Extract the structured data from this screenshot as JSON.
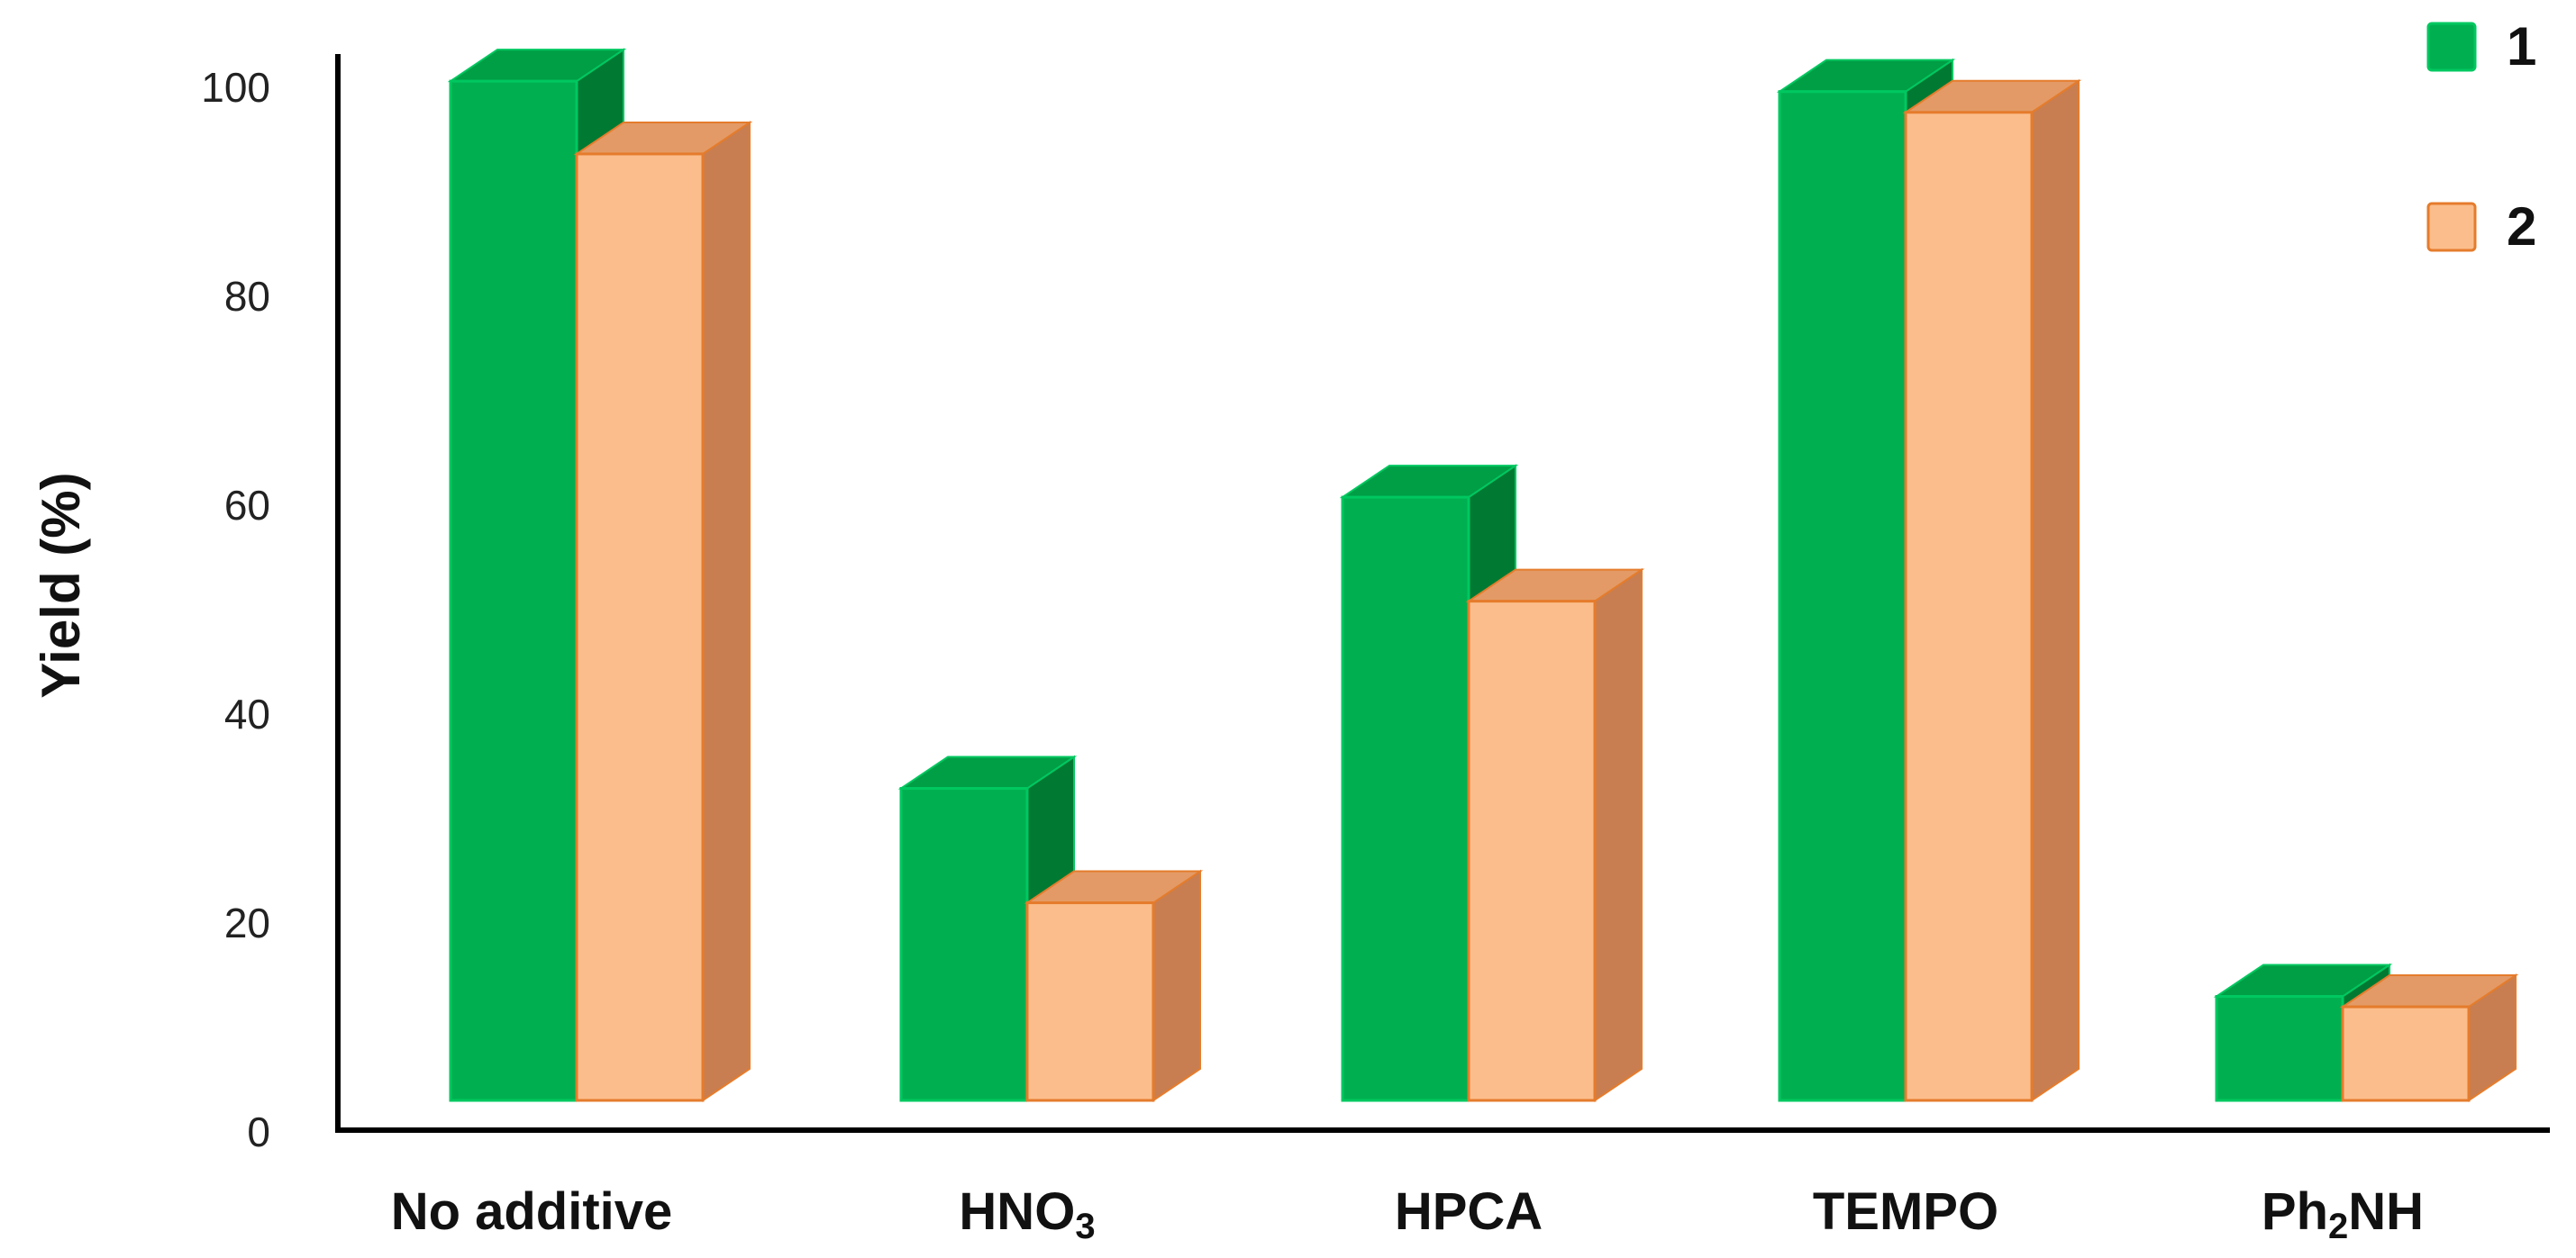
{
  "chart_data": {
    "type": "bar",
    "title": "",
    "xlabel": "",
    "ylabel": "Yield (%)",
    "ylim": [
      0,
      100
    ],
    "yticks": [
      0,
      20,
      40,
      60,
      80,
      100
    ],
    "grid": false,
    "legend_position": "top-right",
    "categories": [
      {
        "main": "No additive",
        "sub": "",
        "tail": ""
      },
      {
        "main": "HNO",
        "sub": "3",
        "tail": ""
      },
      {
        "main": "HPCA",
        "sub": "",
        "tail": ""
      },
      {
        "main": "TEMPO",
        "sub": "",
        "tail": ""
      },
      {
        "main": "Ph",
        "sub": "2",
        "tail": "NH"
      }
    ],
    "series": [
      {
        "name": "1",
        "values": [
          98,
          30,
          58,
          97,
          10
        ],
        "color": "#00b050",
        "side": "#007a33",
        "top": "#009e45",
        "edge": "#00c860"
      },
      {
        "name": "2",
        "values": [
          91,
          19,
          48,
          95,
          9
        ],
        "color": "#fbbd8b",
        "side": "#c87e50",
        "top": "#e39a66",
        "edge": "#e57c2c"
      }
    ]
  }
}
